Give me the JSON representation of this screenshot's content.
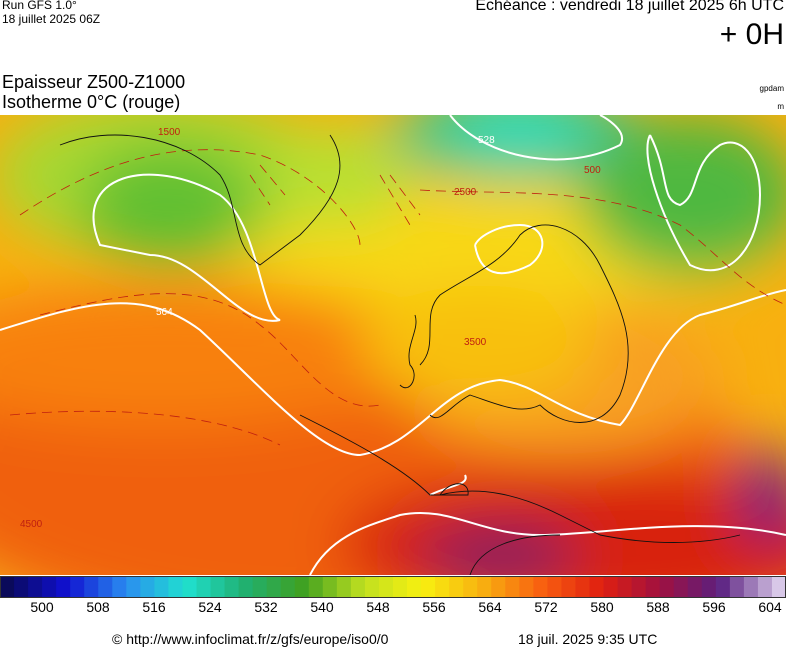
{
  "header": {
    "run": "Run GFS 1.0°",
    "run_date": "18 juillet 2025 06Z",
    "echeance": "Echéance : vendredi 18 juillet 2025 6h UTC",
    "offset": "+ 0H",
    "title_line1": "Epaisseur Z500-Z1000",
    "title_line2": "Isotherme 0°C (rouge)",
    "unit1": "gpdam",
    "unit2": "m"
  },
  "map": {
    "labels": [
      "528",
      "500",
      "1500",
      "2500",
      "3500",
      "564",
      "4500"
    ]
  },
  "colorbar": {
    "ticks": [
      500,
      508,
      516,
      524,
      532,
      540,
      548,
      556,
      564,
      572,
      580,
      588,
      596,
      604
    ],
    "colors": [
      "#0a0a5a",
      "#1010d0",
      "#2a8cf0",
      "#20e0d0",
      "#20b070",
      "#40a020",
      "#c0e020",
      "#f8f010",
      "#f8b010",
      "#f86010",
      "#e02010",
      "#a01040",
      "#5a2080",
      "#d8c8e8"
    ]
  },
  "footer": {
    "source": "© http://www.infoclimat.fr/z/gfs/europe/iso0/0",
    "time": "18 juil. 2025  9:35 UTC"
  }
}
